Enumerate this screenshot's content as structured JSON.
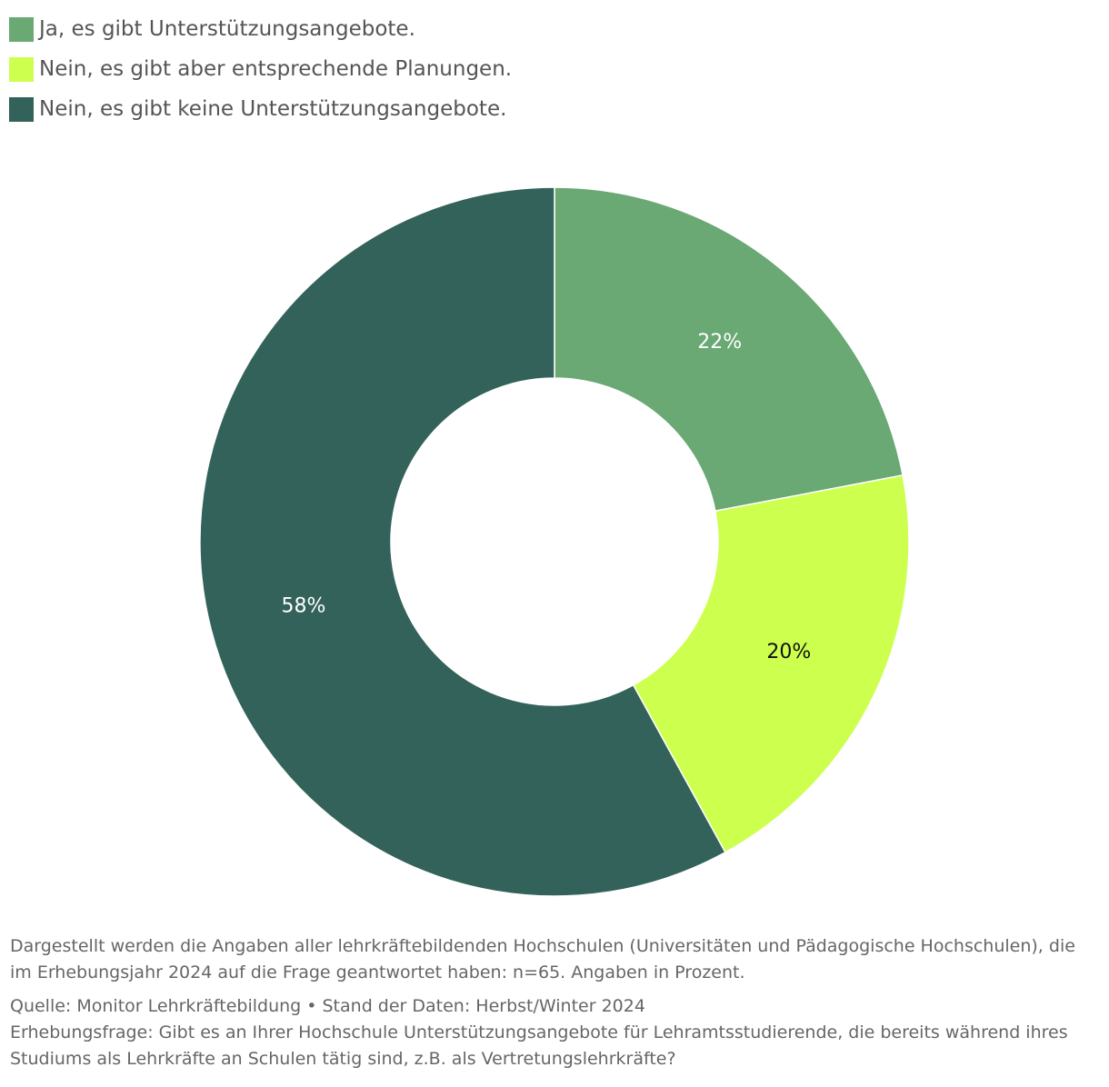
{
  "chart_data": {
    "type": "pie",
    "variant": "donut",
    "categories": [
      "Ja, es gibt Unterstützungsangebote.",
      "Nein, es gibt aber entsprechende Planungen.",
      "Nein, es gibt keine Unterstützungsangebote."
    ],
    "values": [
      22,
      20,
      58
    ],
    "value_labels": [
      "22%",
      "20%",
      "58%"
    ],
    "colors": [
      "#6aa874",
      "#ccff4e",
      "#33625a"
    ],
    "label_colors": [
      "#ffffff",
      "#111111",
      "#ffffff"
    ],
    "legend_position": "top-left",
    "start_angle": "top, clockwise"
  },
  "legend": {
    "items": [
      {
        "label": "Ja, es gibt Unterstützungsangebote.",
        "color": "#6aa874"
      },
      {
        "label": "Nein, es gibt aber entsprechende Planungen.",
        "color": "#ccff4e"
      },
      {
        "label": "Nein, es gibt keine Unterstützungsangebote.",
        "color": "#33625a"
      }
    ]
  },
  "footnotes": {
    "note": "Dargestellt werden die Angaben aller lehrkräftebildenden Hochschulen (Universitäten und Pädagogische Hochschulen), die im Erhebungsjahr 2024 auf die Frage geantwortet haben: n=65. Angaben in Prozent.",
    "source": "Quelle: Monitor Lehrkräftebildung • Stand der Daten: Herbst/Winter 2024",
    "question": "Erhebungsfrage: Gibt es an Ihrer Hochschule Unterstützungsangebote für Lehramtsstudierende, die bereits während ihres Studiums als Lehrkräfte an Schulen tätig sind, z.B. als Vertretungslehrkräfte?"
  }
}
